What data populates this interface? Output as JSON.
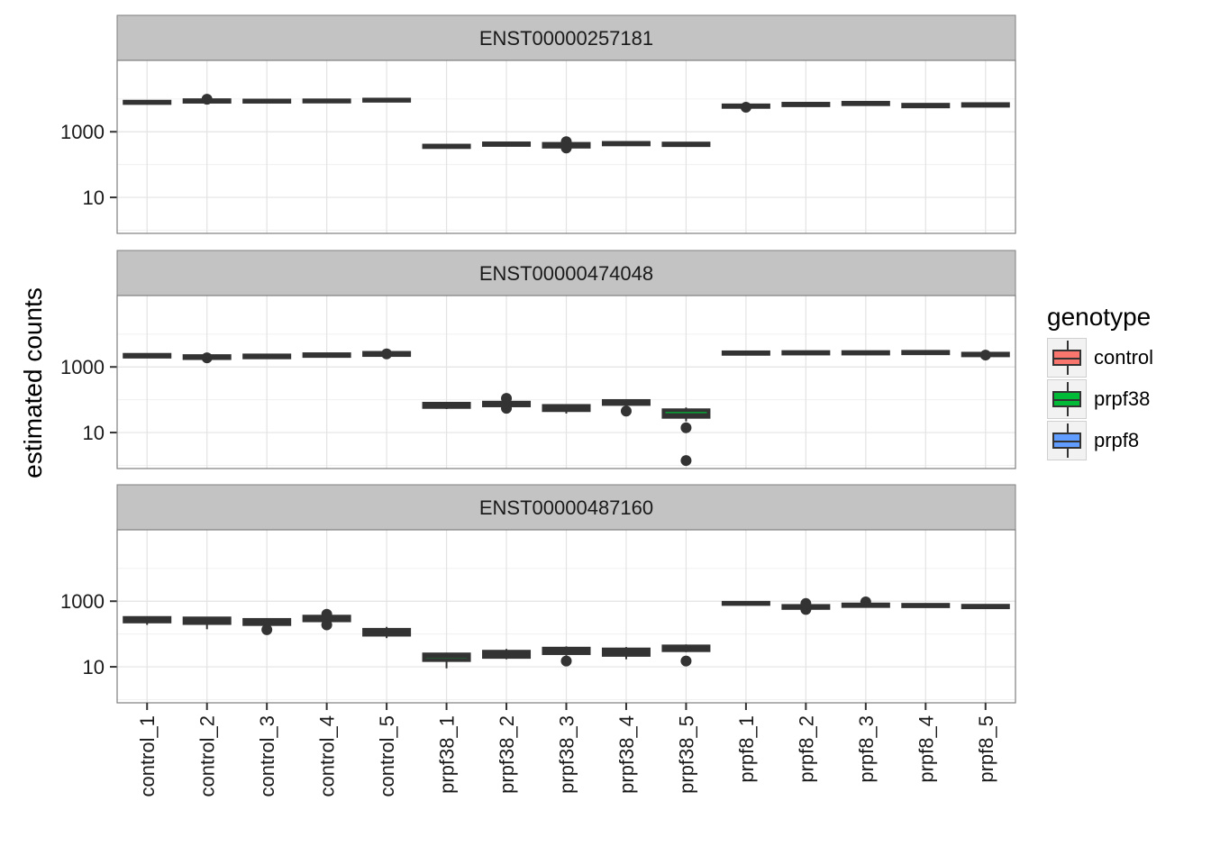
{
  "chart_data": {
    "type": "box",
    "ylabel": "estimated counts",
    "xlabel": "",
    "y_scale": "log10",
    "y_ticks": [
      10,
      1000
    ],
    "ylim": [
      0.8,
      150000
    ],
    "categories": [
      "control_1",
      "control_2",
      "control_3",
      "control_4",
      "control_5",
      "prpf38_1",
      "prpf38_2",
      "prpf38_3",
      "prpf38_4",
      "prpf38_5",
      "prpf8_1",
      "prpf8_2",
      "prpf8_3",
      "prpf8_4",
      "prpf8_5"
    ],
    "genotype_of_category": [
      "control",
      "control",
      "control",
      "control",
      "control",
      "prpf38",
      "prpf38",
      "prpf38",
      "prpf38",
      "prpf38",
      "prpf8",
      "prpf8",
      "prpf8",
      "prpf8",
      "prpf8"
    ],
    "legend": {
      "title": "genotype",
      "position": "right",
      "entries": [
        {
          "label": "control",
          "color": "#F8766D"
        },
        {
          "label": "prpf38",
          "color": "#00BA38"
        },
        {
          "label": "prpf8",
          "color": "#619CFF"
        }
      ]
    },
    "panels": [
      {
        "title": "ENST00000257181",
        "boxes": [
          {
            "q1": 7500,
            "median": 7900,
            "q3": 8300,
            "wlo": 7200,
            "whi": 8600,
            "outliers": []
          },
          {
            "q1": 8200,
            "median": 8700,
            "q3": 9200,
            "wlo": 7900,
            "whi": 9600,
            "outliers": [
              9800
            ]
          },
          {
            "q1": 8200,
            "median": 8600,
            "q3": 9000,
            "wlo": 7900,
            "whi": 9300,
            "outliers": []
          },
          {
            "q1": 8300,
            "median": 8700,
            "q3": 9100,
            "wlo": 8000,
            "whi": 9400,
            "outliers": []
          },
          {
            "q1": 8800,
            "median": 9200,
            "q3": 9600,
            "wlo": 8500,
            "whi": 9900,
            "outliers": []
          },
          {
            "q1": 340,
            "median": 360,
            "q3": 380,
            "wlo": 325,
            "whi": 395,
            "outliers": []
          },
          {
            "q1": 395,
            "median": 420,
            "q3": 445,
            "wlo": 380,
            "whi": 460,
            "outliers": []
          },
          {
            "q1": 350,
            "median": 390,
            "q3": 430,
            "wlo": 330,
            "whi": 450,
            "outliers": [
              320,
              500
            ]
          },
          {
            "q1": 410,
            "median": 435,
            "q3": 460,
            "wlo": 395,
            "whi": 475,
            "outliers": []
          },
          {
            "q1": 390,
            "median": 415,
            "q3": 440,
            "wlo": 375,
            "whi": 455,
            "outliers": []
          },
          {
            "q1": 5700,
            "median": 6050,
            "q3": 6400,
            "wlo": 5500,
            "whi": 6600,
            "outliers": [
              5600
            ]
          },
          {
            "q1": 6400,
            "median": 6800,
            "q3": 7200,
            "wlo": 6200,
            "whi": 7400,
            "outliers": []
          },
          {
            "q1": 6900,
            "median": 7300,
            "q3": 7700,
            "wlo": 6700,
            "whi": 7900,
            "outliers": []
          },
          {
            "q1": 5900,
            "median": 6300,
            "q3": 6700,
            "wlo": 5700,
            "whi": 6900,
            "outliers": []
          },
          {
            "q1": 6200,
            "median": 6600,
            "q3": 7000,
            "wlo": 6000,
            "whi": 7200,
            "outliers": []
          }
        ]
      },
      {
        "title": "ENST00000474048",
        "boxes": [
          {
            "q1": 2050,
            "median": 2200,
            "q3": 2350,
            "wlo": 1950,
            "whi": 2450,
            "outliers": []
          },
          {
            "q1": 1850,
            "median": 2000,
            "q3": 2150,
            "wlo": 1750,
            "whi": 2250,
            "outliers": [
              1900
            ]
          },
          {
            "q1": 1950,
            "median": 2100,
            "q3": 2250,
            "wlo": 1850,
            "whi": 2350,
            "outliers": []
          },
          {
            "q1": 2150,
            "median": 2300,
            "q3": 2450,
            "wlo": 2050,
            "whi": 2550,
            "outliers": []
          },
          {
            "q1": 2300,
            "median": 2500,
            "q3": 2700,
            "wlo": 2200,
            "whi": 2800,
            "outliers": [
              2500
            ]
          },
          {
            "q1": 60,
            "median": 68,
            "q3": 76,
            "wlo": 52,
            "whi": 85,
            "outliers": []
          },
          {
            "q1": 67,
            "median": 74,
            "q3": 82,
            "wlo": 60,
            "whi": 88,
            "outliers": [
              55,
              110
            ]
          },
          {
            "q1": 48,
            "median": 55,
            "q3": 65,
            "wlo": 38,
            "whi": 72,
            "outliers": []
          },
          {
            "q1": 74,
            "median": 82,
            "q3": 92,
            "wlo": 66,
            "whi": 98,
            "outliers": [
              45
            ]
          },
          {
            "q1": 30,
            "median": 36,
            "q3": 48,
            "wlo": 22,
            "whi": 58,
            "outliers": [
              14,
              1.4
            ]
          },
          {
            "q1": 2500,
            "median": 2650,
            "q3": 2800,
            "wlo": 2400,
            "whi": 2900,
            "outliers": []
          },
          {
            "q1": 2550,
            "median": 2700,
            "q3": 2850,
            "wlo": 2450,
            "whi": 2950,
            "outliers": []
          },
          {
            "q1": 2550,
            "median": 2700,
            "q3": 2850,
            "wlo": 2450,
            "whi": 2950,
            "outliers": []
          },
          {
            "q1": 2600,
            "median": 2750,
            "q3": 2900,
            "wlo": 2500,
            "whi": 3000,
            "outliers": []
          },
          {
            "q1": 2250,
            "median": 2400,
            "q3": 2550,
            "wlo": 2150,
            "whi": 2650,
            "outliers": [
              2300
            ]
          }
        ]
      },
      {
        "title": "ENST00000487160",
        "boxes": [
          {
            "q1": 240,
            "median": 275,
            "q3": 310,
            "wlo": 190,
            "whi": 340,
            "outliers": []
          },
          {
            "q1": 215,
            "median": 255,
            "q3": 300,
            "wlo": 140,
            "whi": 330,
            "outliers": []
          },
          {
            "q1": 200,
            "median": 235,
            "q3": 270,
            "wlo": 160,
            "whi": 300,
            "outliers": [
              135
            ]
          },
          {
            "q1": 260,
            "median": 300,
            "q3": 340,
            "wlo": 230,
            "whi": 360,
            "outliers": [
              190,
              400
            ]
          },
          {
            "q1": 95,
            "median": 115,
            "q3": 135,
            "wlo": 75,
            "whi": 165,
            "outliers": []
          },
          {
            "q1": 16,
            "median": 20,
            "q3": 24,
            "wlo": 9,
            "whi": 27,
            "outliers": []
          },
          {
            "q1": 20,
            "median": 24,
            "q3": 29,
            "wlo": 17,
            "whi": 35,
            "outliers": []
          },
          {
            "q1": 26,
            "median": 31,
            "q3": 36,
            "wlo": 22,
            "whi": 42,
            "outliers": [
              15
            ]
          },
          {
            "q1": 23,
            "median": 28,
            "q3": 34,
            "wlo": 17,
            "whi": 40,
            "outliers": []
          },
          {
            "q1": 32,
            "median": 37,
            "q3": 42,
            "wlo": 28,
            "whi": 48,
            "outliers": [
              15
            ]
          },
          {
            "q1": 820,
            "median": 860,
            "q3": 900,
            "wlo": 790,
            "whi": 930,
            "outliers": []
          },
          {
            "q1": 620,
            "median": 680,
            "q3": 720,
            "wlo": 580,
            "whi": 750,
            "outliers": [
              560,
              850
            ]
          },
          {
            "q1": 710,
            "median": 760,
            "q3": 800,
            "wlo": 680,
            "whi": 830,
            "outliers": [
              950
            ]
          },
          {
            "q1": 700,
            "median": 740,
            "q3": 780,
            "wlo": 670,
            "whi": 800,
            "outliers": []
          },
          {
            "q1": 650,
            "median": 690,
            "q3": 730,
            "wlo": 620,
            "whi": 750,
            "outliers": []
          }
        ]
      }
    ]
  }
}
